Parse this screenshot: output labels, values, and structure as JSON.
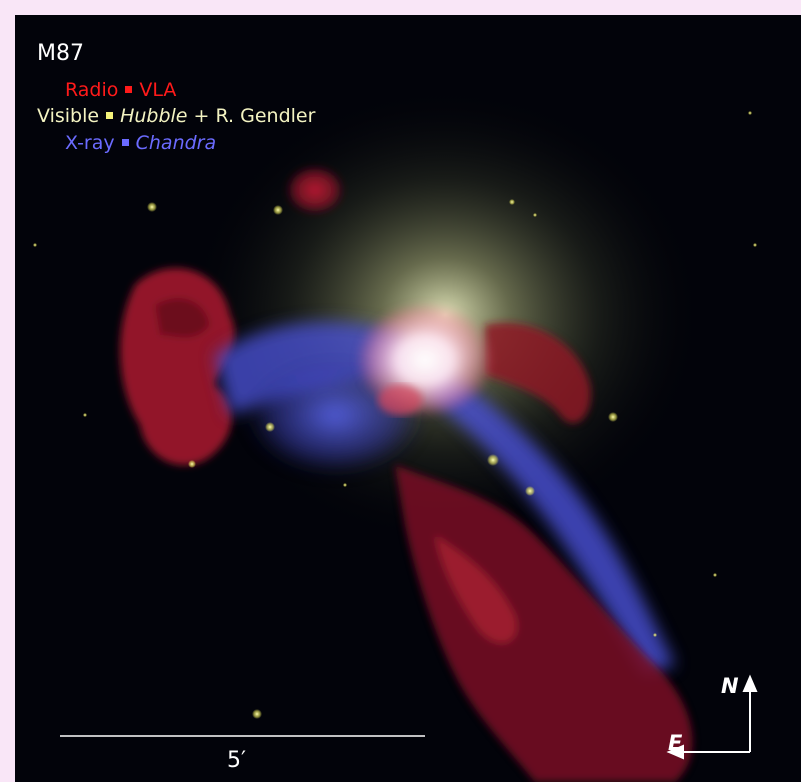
{
  "image": {
    "object_name": "M87",
    "legend": {
      "radio": {
        "band": "Radio",
        "separator": "▪",
        "instrument": "VLA",
        "color": "#ff1a1a"
      },
      "visible": {
        "band": "Visible",
        "separator": "▪",
        "instrument": "Hubble",
        "credit": "+ R. Gendler",
        "color": "#f3f3c2",
        "separator_color": "#f4f27a"
      },
      "xray": {
        "band": "X-ray",
        "separator": "▪",
        "instrument": "Chandra",
        "color": "#6b6bff"
      }
    },
    "scale_bar": {
      "label": "5′",
      "color": "#ffffff"
    },
    "compass": {
      "north": "N",
      "east": "E",
      "color": "#ffffff"
    },
    "colors": {
      "background": "#02030a",
      "frame": "#f9e6f7",
      "core": "#ffffff",
      "radio_lobes": "#b01828",
      "xray_jet": "#4a52d8",
      "stellar_halo": "#bcc48a"
    }
  }
}
